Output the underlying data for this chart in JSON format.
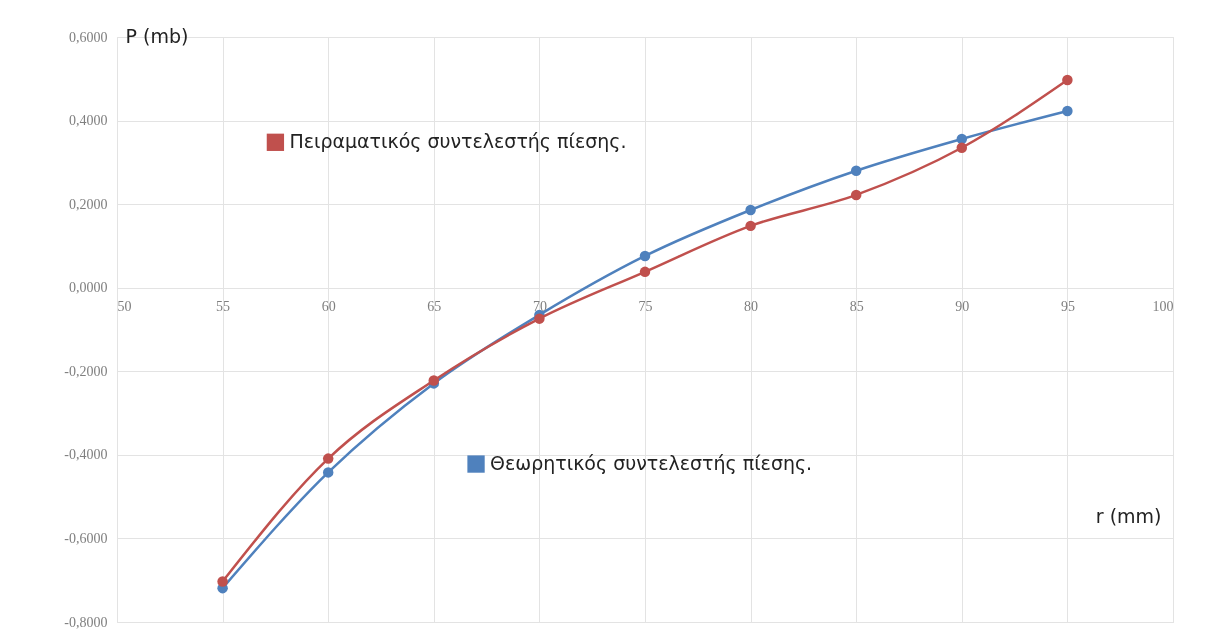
{
  "chart_data": {
    "type": "line",
    "xlabel": "r (mm)",
    "ylabel": "P (mb)",
    "x": [
      55,
      60,
      65,
      70,
      75,
      80,
      85,
      90,
      95
    ],
    "series": [
      {
        "name": "Πειραματικός συντελεστής πίεσης.",
        "color": "#c0504d",
        "values": [
          -0.703,
          -0.409,
          -0.222,
          -0.074,
          0.038,
          0.148,
          0.222,
          0.335,
          0.497
        ]
      },
      {
        "name": "Θεωρητικός συντελεστής πίεσης.",
        "color": "#4f81bd",
        "values": [
          -0.719,
          -0.442,
          -0.229,
          -0.065,
          0.076,
          0.186,
          0.28,
          0.356,
          0.423
        ]
      }
    ],
    "xlim": [
      50,
      100
    ],
    "xticks": [
      50,
      55,
      60,
      65,
      70,
      75,
      80,
      85,
      90,
      95,
      100
    ],
    "ylim": [
      -0.8,
      0.6
    ],
    "yticks": [
      {
        "value": -0.8,
        "label": "-0,8000"
      },
      {
        "value": -0.6,
        "label": "-0,6000"
      },
      {
        "value": -0.4,
        "label": "-0,4000"
      },
      {
        "value": -0.2,
        "label": "-0,2000"
      },
      {
        "value": 0,
        "label": "0,0000"
      },
      {
        "value": 0.2,
        "label": "0,2000"
      },
      {
        "value": 0.4,
        "label": "0,4000"
      },
      {
        "value": 0.6,
        "label": "0,6000"
      }
    ],
    "grid": true,
    "legend": "left",
    "marker": "circle",
    "line_style": "solid"
  }
}
